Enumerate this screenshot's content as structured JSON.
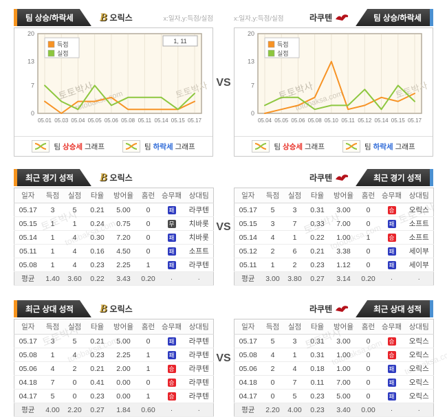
{
  "vs_label": "VS",
  "watermark": {
    "kr": "토토박사",
    "en": "totobaksa.com"
  },
  "teams": {
    "left": {
      "name": "오릭스",
      "logo_letter": "B"
    },
    "right": {
      "name": "라쿠텐"
    }
  },
  "trend": {
    "title": "팀 상승/하락세",
    "axis_hint": "x:일자,y:득점/실점",
    "footer": {
      "team_word": "팀",
      "rise_word": "상승세",
      "fall_word": "하락세",
      "graph_word": "그래프"
    }
  },
  "chart_data": [
    {
      "type": "line",
      "team": "오릭스",
      "xlabel": "일자",
      "ylabel": "득점/실점",
      "x": [
        "05.01",
        "05.03",
        "05.04",
        "05.05",
        "05.06",
        "05.08",
        "05.11",
        "05.14",
        "05.15",
        "05.17"
      ],
      "series": [
        {
          "name": "득점",
          "color": "#f79325",
          "values": [
            3,
            0,
            3,
            3,
            4,
            1,
            1,
            1,
            1,
            3
          ]
        },
        {
          "name": "실점",
          "color": "#8dc73f",
          "values": [
            7,
            3,
            1,
            7,
            2,
            4,
            4,
            4,
            1,
            5
          ]
        }
      ],
      "ylim": [
        0,
        20
      ],
      "yticks": [
        0,
        7,
        13,
        20
      ],
      "annotation": "1, 11",
      "legend_position": "top-left",
      "grid": true
    },
    {
      "type": "line",
      "team": "라쿠텐",
      "xlabel": "일자",
      "ylabel": "득점/실점",
      "x": [
        "05.04",
        "05.05",
        "05.06",
        "05.08",
        "05.10",
        "05.11",
        "05.12",
        "05.14",
        "05.15",
        "05.17"
      ],
      "series": [
        {
          "name": "득점",
          "color": "#f79325",
          "values": [
            0,
            1,
            2,
            4,
            13,
            1,
            2,
            4,
            3,
            5
          ]
        },
        {
          "name": "실점",
          "color": "#8dc73f",
          "values": [
            2,
            4,
            4,
            1,
            2,
            2,
            6,
            1,
            7,
            3
          ]
        }
      ],
      "ylim": [
        0,
        20
      ],
      "yticks": [
        0,
        7,
        13,
        20
      ],
      "annotation": null,
      "legend_position": "top-left",
      "grid": true
    }
  ],
  "tables": {
    "columns": [
      "일자",
      "득점",
      "실점",
      "타율",
      "방어율",
      "홈런",
      "승무패",
      "상대팀"
    ],
    "recent": {
      "title": "최근 경기 성적",
      "left": {
        "rows": [
          [
            "05.17",
            "3",
            "5",
            "0.21",
            "5.00",
            "0",
            {
              "label": "패",
              "type": "lose"
            },
            "라쿠텐"
          ],
          [
            "05.15",
            "1",
            "1",
            "0.24",
            "0.75",
            "0",
            {
              "label": "무",
              "type": "draw"
            },
            "치바롯"
          ],
          [
            "05.14",
            "1",
            "4",
            "0.30",
            "7.20",
            "0",
            {
              "label": "패",
              "type": "lose"
            },
            "치바롯"
          ],
          [
            "05.11",
            "1",
            "4",
            "0.16",
            "4.50",
            "0",
            {
              "label": "패",
              "type": "lose"
            },
            "소프트"
          ],
          [
            "05.08",
            "1",
            "4",
            "0.23",
            "2.25",
            "1",
            {
              "label": "패",
              "type": "lose"
            },
            "라쿠텐"
          ]
        ],
        "avg": [
          "평균",
          "1.40",
          "3.60",
          "0.22",
          "3.43",
          "0.20",
          "·",
          "·"
        ]
      },
      "right": {
        "rows": [
          [
            "05.17",
            "5",
            "3",
            "0.31",
            "3.00",
            "0",
            {
              "label": "승",
              "type": "win"
            },
            "오릭스"
          ],
          [
            "05.15",
            "3",
            "7",
            "0.33",
            "7.00",
            "0",
            {
              "label": "패",
              "type": "lose"
            },
            "소프트"
          ],
          [
            "05.14",
            "4",
            "1",
            "0.22",
            "1.00",
            "1",
            {
              "label": "승",
              "type": "win"
            },
            "소프트"
          ],
          [
            "05.12",
            "2",
            "6",
            "0.21",
            "3.38",
            "0",
            {
              "label": "패",
              "type": "lose"
            },
            "세이부"
          ],
          [
            "05.11",
            "1",
            "2",
            "0.23",
            "1.12",
            "0",
            {
              "label": "패",
              "type": "lose"
            },
            "세이부"
          ]
        ],
        "avg": [
          "평균",
          "3.00",
          "3.80",
          "0.27",
          "3.14",
          "0.20",
          "·",
          "·"
        ]
      }
    },
    "h2h": {
      "title": "최근 상대 성적",
      "left": {
        "rows": [
          [
            "05.17",
            "3",
            "5",
            "0.21",
            "5.00",
            "0",
            {
              "label": "패",
              "type": "lose"
            },
            "라쿠텐"
          ],
          [
            "05.08",
            "1",
            "4",
            "0.23",
            "2.25",
            "1",
            {
              "label": "패",
              "type": "lose"
            },
            "라쿠텐"
          ],
          [
            "05.06",
            "4",
            "2",
            "0.21",
            "2.00",
            "1",
            {
              "label": "승",
              "type": "win"
            },
            "라쿠텐"
          ],
          [
            "04.18",
            "7",
            "0",
            "0.41",
            "0.00",
            "0",
            {
              "label": "승",
              "type": "win"
            },
            "라쿠텐"
          ],
          [
            "04.17",
            "5",
            "0",
            "0.23",
            "0.00",
            "1",
            {
              "label": "승",
              "type": "win"
            },
            "라쿠텐"
          ]
        ],
        "avg": [
          "평균",
          "4.00",
          "2.20",
          "0.27",
          "1.84",
          "0.60",
          "·",
          "·"
        ]
      },
      "right": {
        "rows": [
          [
            "05.17",
            "5",
            "3",
            "0.31",
            "3.00",
            "0",
            {
              "label": "승",
              "type": "win"
            },
            "오릭스"
          ],
          [
            "05.08",
            "4",
            "1",
            "0.31",
            "1.00",
            "0",
            {
              "label": "승",
              "type": "win"
            },
            "오릭스"
          ],
          [
            "05.06",
            "2",
            "4",
            "0.18",
            "1.00",
            "0",
            {
              "label": "패",
              "type": "lose"
            },
            "오릭스"
          ],
          [
            "04.18",
            "0",
            "7",
            "0.11",
            "7.00",
            "0",
            {
              "label": "패",
              "type": "lose"
            },
            "오릭스"
          ],
          [
            "04.17",
            "0",
            "5",
            "0.23",
            "5.00",
            "0",
            {
              "label": "패",
              "type": "lose"
            },
            "오릭스"
          ]
        ],
        "avg": [
          "평균",
          "2.20",
          "4.00",
          "0.23",
          "3.40",
          "0.00",
          "·",
          "·"
        ]
      }
    }
  },
  "colors": {
    "accent_orange": "#f7941d",
    "accent_blue": "#4a90d2",
    "bar_dark": "#3a3a3a",
    "score_line": "#f79325",
    "concede_line": "#8dc73f",
    "win_badge": "#e8242b",
    "lose_badge": "#2e3bc0",
    "draw_badge": "#4a4a4a",
    "rise_word": "#e8332a",
    "fall_word": "#2f6bd8",
    "orix_gold": "#c9a23d",
    "rakuten_crimson": "#b5121b",
    "plot_bg": "#fdf8ec"
  }
}
